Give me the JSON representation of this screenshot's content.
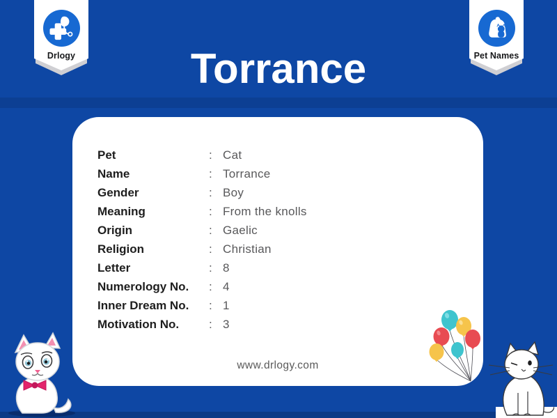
{
  "page": {
    "title": "Torrance",
    "website": "www.drlogy.com"
  },
  "badges": {
    "left": {
      "label": "Drlogy",
      "icon": "medical-cross-stethoscope-icon"
    },
    "right": {
      "label": "Pet Names",
      "icon": "dog-and-cat-icon"
    }
  },
  "details": {
    "rows": [
      {
        "label": "Pet",
        "separator": ":",
        "value": "Cat"
      },
      {
        "label": "Name",
        "separator": ":",
        "value": "Torrance"
      },
      {
        "label": "Gender",
        "separator": ":",
        "value": "Boy"
      },
      {
        "label": "Meaning",
        "separator": ":",
        "value": "From the knolls"
      },
      {
        "label": "Origin",
        "separator": ":",
        "value": "Gaelic"
      },
      {
        "label": "Religion",
        "separator": ":",
        "value": "Christian"
      },
      {
        "label": "Letter",
        "separator": ":",
        "value": "8"
      },
      {
        "label": "Numerology No.",
        "separator": ":",
        "value": "4"
      },
      {
        "label": "Inner Dream No.",
        "separator": ":",
        "value": "1"
      },
      {
        "label": "Motivation No.",
        "separator": ":",
        "value": "3"
      }
    ]
  },
  "illustrations": {
    "bottom_left": "white-kitten-with-pink-bow",
    "bottom_right": "white-line-art-cat",
    "card_corner": "balloon-bunch"
  },
  "colors": {
    "background": "#0E47A4",
    "badge_circle": "#1769D2",
    "ribbon_white": "#FFFFFF",
    "ribbon_fold": "#CFCFD3",
    "title_color": "#FFFFFF",
    "card_bg": "#FFFFFF",
    "label_color": "#1E1E1E",
    "value_color": "#58585A",
    "website_color": "#5A5A5A",
    "balloon_teal": "#3FC4CE",
    "balloon_yellow": "#F6C44B",
    "balloon_red": "#E84B52",
    "bow_pink": "#E3236B"
  }
}
